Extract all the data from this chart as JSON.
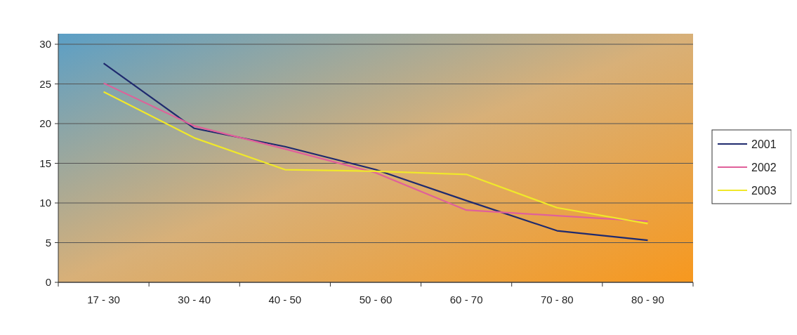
{
  "chart_data": {
    "type": "line",
    "categories": [
      "17 - 30",
      "30 - 40",
      "40 - 50",
      "50 - 60",
      "60 - 70",
      "70 - 80",
      "80 - 90"
    ],
    "series": [
      {
        "name": "2001",
        "color": "#1f2a6e",
        "values": [
          27.6,
          19.4,
          17.1,
          14.2,
          10.3,
          6.5,
          5.3
        ]
      },
      {
        "name": "2002",
        "color": "#e0609a",
        "values": [
          25.1,
          19.7,
          16.8,
          13.8,
          9.1,
          8.4,
          7.7
        ]
      },
      {
        "name": "2003",
        "color": "#f0e82a",
        "values": [
          24.0,
          18.2,
          14.2,
          14.0,
          13.6,
          9.4,
          7.4
        ]
      }
    ],
    "ylim": [
      0,
      30
    ],
    "yticks": [
      0,
      5,
      10,
      15,
      20,
      25,
      30
    ],
    "grid": "y",
    "legend": "right",
    "marker": "none",
    "line_style": "solid"
  }
}
